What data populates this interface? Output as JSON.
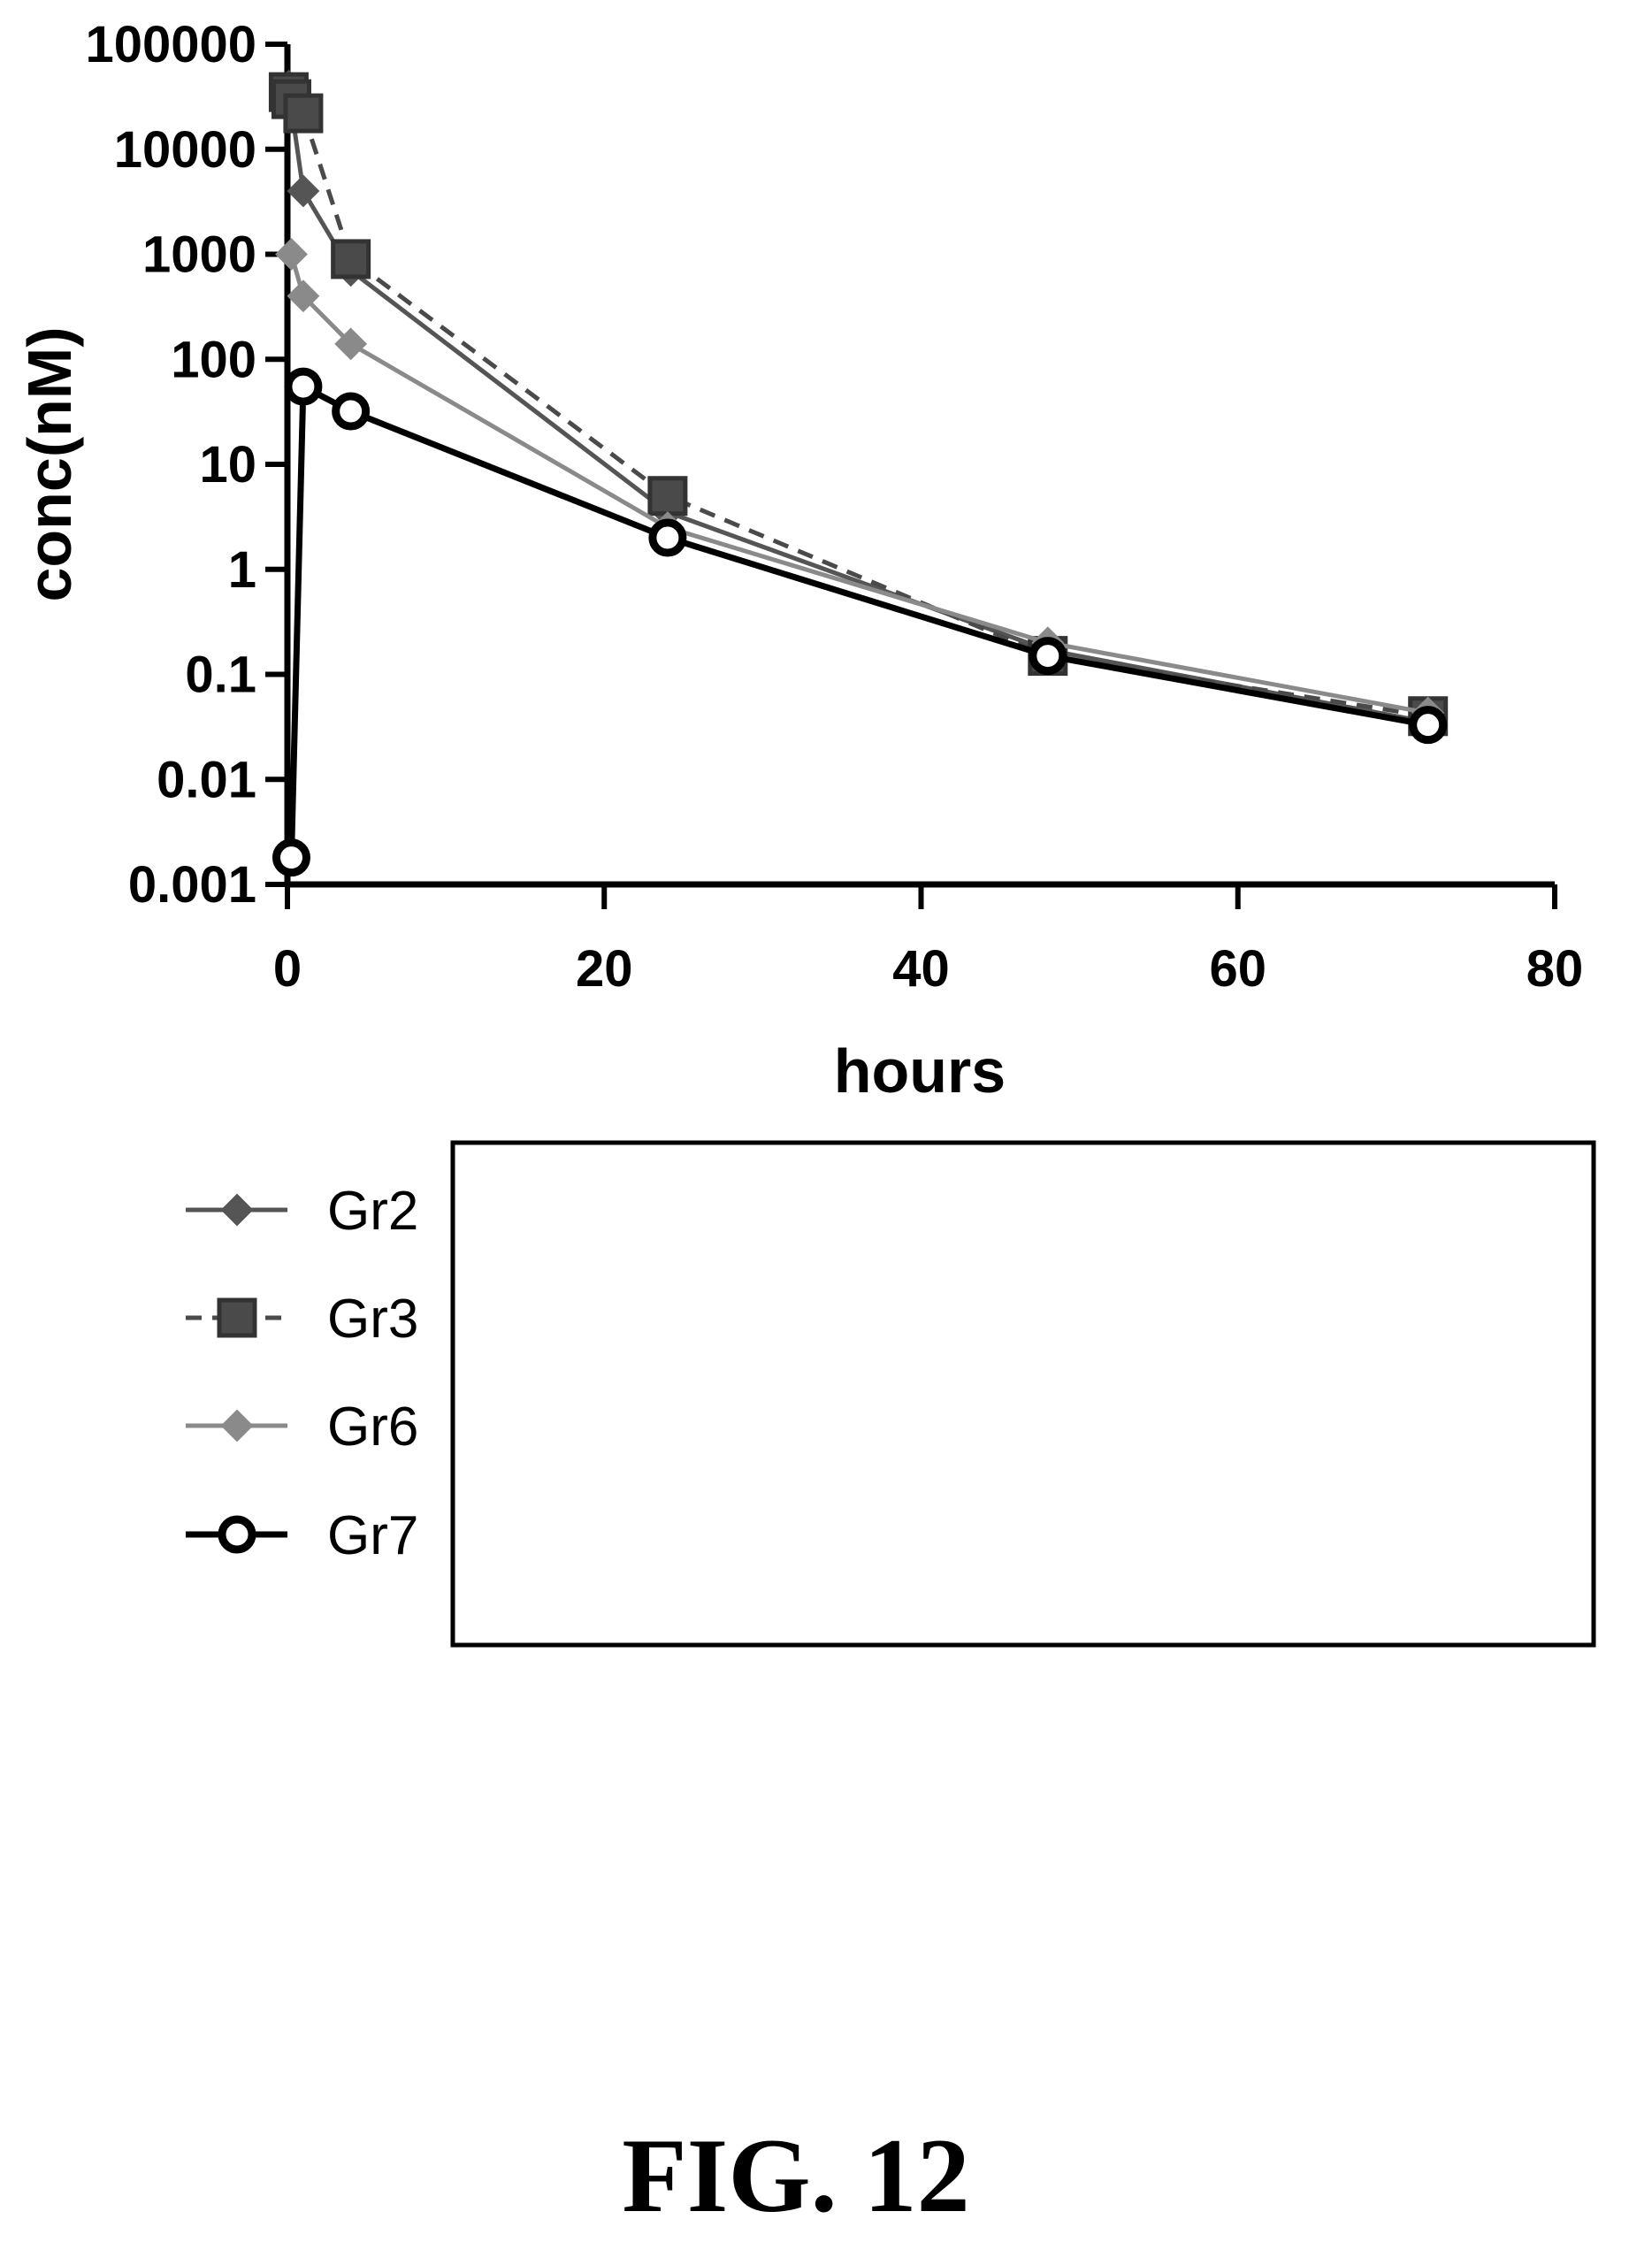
{
  "chart_data": {
    "type": "line",
    "xlabel": "hours",
    "ylabel": "conc(nM)",
    "y_scale": "log",
    "xlim": [
      0,
      80
    ],
    "ylim": [
      0.001,
      100000
    ],
    "x_ticks": [
      "0",
      "20",
      "40",
      "60",
      "80"
    ],
    "y_ticks": [
      "0.001",
      "0.01",
      "0.1",
      "1",
      "10",
      "100",
      "1000",
      "10000",
      "100000"
    ],
    "grid": false,
    "legend_position": "bottom-left",
    "series": [
      {
        "name": "Gr2",
        "color": "#555555",
        "marker": "diamond",
        "dash": "solid",
        "x": [
          0.08,
          0.25,
          1,
          4,
          24,
          48,
          72
        ],
        "y": [
          40000,
          25000,
          4000,
          700,
          3.5,
          0.17,
          0.035
        ]
      },
      {
        "name": "Gr3",
        "color": "#4a4a4a",
        "marker": "square",
        "dash": "dashed",
        "x": [
          0.08,
          0.25,
          1,
          4,
          24,
          48,
          72
        ],
        "y": [
          35000,
          30000,
          22000,
          900,
          5,
          0.15,
          0.04
        ]
      },
      {
        "name": "Gr6",
        "color": "#8a8a8a",
        "marker": "diamond",
        "dash": "solid",
        "x": [
          0.25,
          1,
          4,
          24,
          48,
          72
        ],
        "y": [
          1000,
          400,
          140,
          2.5,
          0.2,
          0.043
        ]
      },
      {
        "name": "Gr7",
        "color": "#000000",
        "marker": "circle",
        "dash": "solid",
        "x": [
          0.25,
          1,
          4,
          24,
          48,
          72
        ],
        "y": [
          0.0018,
          55,
          32,
          2,
          0.15,
          0.033
        ]
      }
    ]
  },
  "figure_caption": "FIG. 12"
}
